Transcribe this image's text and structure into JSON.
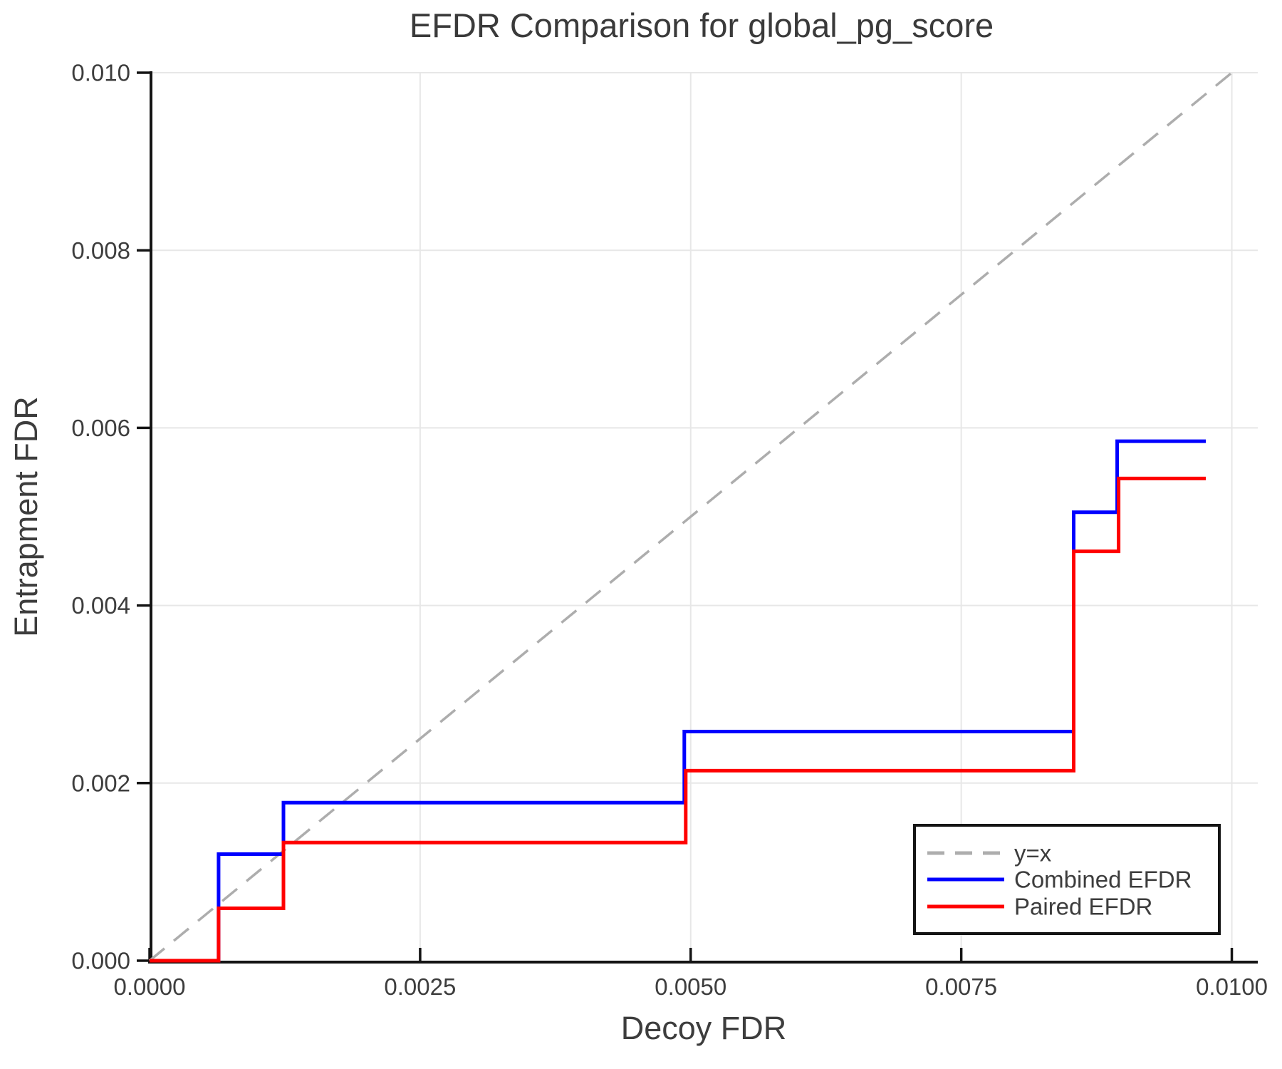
{
  "title": "EFDR Comparison for global_pg_score",
  "axes": {
    "x_label": "Decoy FDR",
    "y_label": "Entrapment FDR",
    "x_tick_values": [
      0,
      0.0025,
      0.005,
      0.0075,
      0.01
    ],
    "x_tick_labels": [
      "0.0000",
      "0.0025",
      "0.0050",
      "0.0075",
      "0.0100"
    ],
    "y_tick_values": [
      0,
      0.002,
      0.004,
      0.006,
      0.008,
      0.01
    ],
    "y_tick_labels": [
      "0.000",
      "0.002",
      "0.004",
      "0.006",
      "0.008",
      "0.010"
    ]
  },
  "legend": {
    "items": [
      {
        "label": "y=x",
        "color": "#adadad",
        "dashed": true
      },
      {
        "label": "Combined EFDR",
        "color": "#0000ff",
        "dashed": false
      },
      {
        "label": "Paired EFDR",
        "color": "#ff0000",
        "dashed": false
      }
    ]
  },
  "colors": {
    "identity_line": "#adadad",
    "combined_efdr": "#0000ff",
    "paired_efdr": "#ff0000",
    "grid": "#e7e7e7",
    "axis": "#141414",
    "text": "#3d3d3d"
  },
  "chart_data": {
    "type": "line",
    "title": "EFDR Comparison for global_pg_score",
    "xlabel": "Decoy FDR",
    "ylabel": "Entrapment FDR",
    "xlim": [
      0,
      0.01024
    ],
    "ylim": [
      0,
      0.01
    ],
    "grid": true,
    "legend_position": "lower right",
    "series": [
      {
        "name": "y=x",
        "style": "dashed",
        "color": "#adadad",
        "points": [
          [
            0,
            0
          ],
          [
            0.01,
            0.01
          ]
        ]
      },
      {
        "name": "Combined EFDR",
        "style": "solid",
        "color": "#0000ff",
        "points": [
          [
            0,
            0
          ],
          [
            0.000638,
            0
          ],
          [
            0.000638,
            0.0012
          ],
          [
            0.001237,
            0.0012
          ],
          [
            0.001237,
            0.00178
          ],
          [
            0.004941,
            0.00178
          ],
          [
            0.004941,
            0.00258
          ],
          [
            0.008539,
            0.00258
          ],
          [
            0.008539,
            0.00505
          ],
          [
            0.008941,
            0.00505
          ],
          [
            0.008941,
            0.00585
          ],
          [
            0.00976,
            0.00585
          ]
        ]
      },
      {
        "name": "Paired EFDR",
        "style": "solid",
        "color": "#ff0000",
        "points": [
          [
            0,
            0
          ],
          [
            0.000638,
            0
          ],
          [
            0.000638,
            0.00059
          ],
          [
            0.001237,
            0.00059
          ],
          [
            0.001237,
            0.00133
          ],
          [
            0.004954,
            0.00133
          ],
          [
            0.004954,
            0.00214
          ],
          [
            0.008539,
            0.00214
          ],
          [
            0.008539,
            0.00461
          ],
          [
            0.008954,
            0.00461
          ],
          [
            0.008954,
            0.00543
          ],
          [
            0.00976,
            0.00543
          ]
        ]
      }
    ]
  }
}
